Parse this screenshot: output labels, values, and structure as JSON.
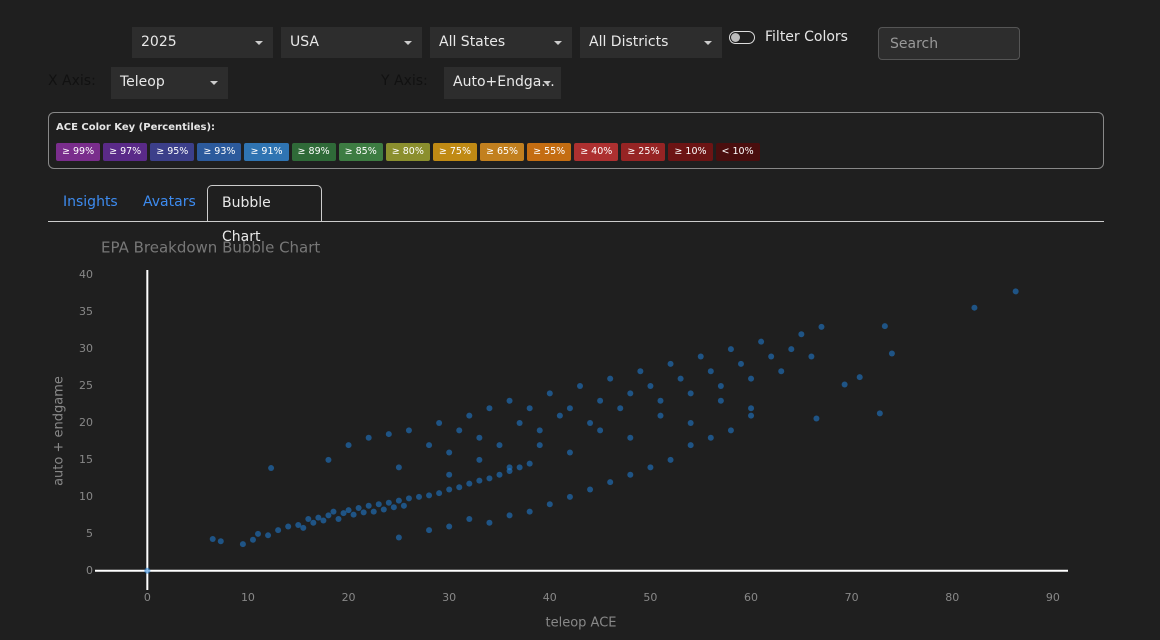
{
  "controls": {
    "year": "2025",
    "country": "USA",
    "state": "All States",
    "district": "All Districts",
    "filter_colors": "Filter Colors",
    "search_placeholder": "Search",
    "x_axis_label": "X Axis:",
    "x_axis_value": "Teleop",
    "y_axis_label": "Y Axis:",
    "y_axis_value": "Auto+Endga..."
  },
  "color_key": {
    "title": "ACE Color Key (Percentiles):",
    "items": [
      {
        "label": "≥ 99%",
        "color": "#7a2d8c"
      },
      {
        "label": "≥ 97%",
        "color": "#5a2a88"
      },
      {
        "label": "≥ 95%",
        "color": "#3c3f8a"
      },
      {
        "label": "≥ 93%",
        "color": "#2c5a9c"
      },
      {
        "label": "≥ 91%",
        "color": "#2f74b2"
      },
      {
        "label": "≥ 89%",
        "color": "#2f6a38"
      },
      {
        "label": "≥ 85%",
        "color": "#3d7c42"
      },
      {
        "label": "≥ 80%",
        "color": "#8b8f2e"
      },
      {
        "label": "≥ 75%",
        "color": "#c08a14"
      },
      {
        "label": "≥ 65%",
        "color": "#c2801f"
      },
      {
        "label": "≥ 55%",
        "color": "#c46d12"
      },
      {
        "label": "≥ 40%",
        "color": "#ad3030"
      },
      {
        "label": "≥ 25%",
        "color": "#962424"
      },
      {
        "label": "≥ 10%",
        "color": "#6c1414"
      },
      {
        "label": "< 10%",
        "color": "#4a0e0e"
      }
    ]
  },
  "tabs": [
    "Insights",
    "Avatars",
    "Bubble Chart"
  ],
  "chart_data": {
    "type": "scatter",
    "title": "EPA Breakdown Bubble Chart",
    "x_label": "teleop ACE",
    "y_label": "auto + endgame",
    "xlim": [
      -5.2,
      91.5
    ],
    "ylim": [
      -2.6,
      40.7
    ],
    "xticks": [
      0,
      10,
      20,
      30,
      40,
      50,
      60,
      70,
      80,
      90
    ],
    "yticks": [
      0,
      5,
      10,
      15,
      20,
      25,
      30,
      35,
      40
    ],
    "series": [
      {
        "color": "#1f7fd8",
        "x": [
          9.5,
          10.5,
          11,
          12,
          13,
          14,
          15,
          15.5,
          16,
          16.5,
          17,
          17.5,
          18,
          18.5,
          19,
          19.5,
          20,
          20.5,
          21,
          21.5,
          22,
          22.5,
          23,
          23.5,
          24,
          24.5,
          25,
          25.5,
          26,
          27,
          28,
          29,
          30,
          31,
          32,
          33,
          34,
          35,
          36,
          37,
          38,
          18,
          20,
          22,
          24,
          25,
          26,
          28,
          29,
          30,
          31,
          32,
          33,
          34,
          35,
          36,
          37,
          38,
          39,
          40,
          41,
          42,
          43,
          44,
          45,
          46,
          47,
          48,
          49,
          50,
          51,
          52,
          53,
          54,
          55,
          56,
          57,
          58,
          59,
          60,
          61,
          62,
          63,
          64,
          65,
          66,
          67,
          25,
          28,
          30,
          32,
          34,
          36,
          38,
          40,
          42,
          44,
          46,
          48,
          50,
          52,
          54,
          56,
          58,
          60,
          30,
          33,
          36,
          39,
          42,
          45,
          48,
          51,
          54,
          57,
          60,
          86.3,
          82.2,
          73.3,
          74,
          72.8,
          70.8,
          69.3,
          66.5,
          6.5,
          7.3,
          12.3,
          0
        ],
        "y": [
          3.6,
          4.2,
          5,
          4.8,
          5.5,
          6,
          6.2,
          5.8,
          7,
          6.5,
          7.2,
          6.8,
          7.5,
          8,
          7,
          7.8,
          8.2,
          7.6,
          8.5,
          7.9,
          8.8,
          8,
          9,
          8.3,
          9.2,
          8.6,
          9.5,
          8.8,
          9.8,
          10,
          10.2,
          10.5,
          11,
          11.3,
          11.8,
          12.2,
          12.5,
          13,
          13.5,
          14,
          14.5,
          15,
          17,
          18,
          18.5,
          14,
          19,
          17,
          20,
          16,
          19,
          21,
          18,
          22,
          17,
          23,
          20,
          22,
          19,
          24,
          21,
          22,
          25,
          20,
          23,
          26,
          22,
          24,
          27,
          25,
          23,
          28,
          26,
          24,
          29,
          27,
          25,
          30,
          28,
          26,
          31,
          29,
          27,
          30,
          32,
          29,
          33,
          4.5,
          5.5,
          6,
          7,
          6.5,
          7.5,
          8,
          9,
          10,
          11,
          12,
          13,
          14,
          15,
          17,
          18,
          19,
          21,
          13,
          15,
          14,
          17,
          16,
          19,
          18,
          21,
          20,
          23,
          22,
          37.8,
          35.6,
          33.1,
          29.4,
          21.3,
          26.2,
          25.2,
          20.6,
          4.3,
          4,
          13.9,
          0
        ]
      }
    ]
  }
}
